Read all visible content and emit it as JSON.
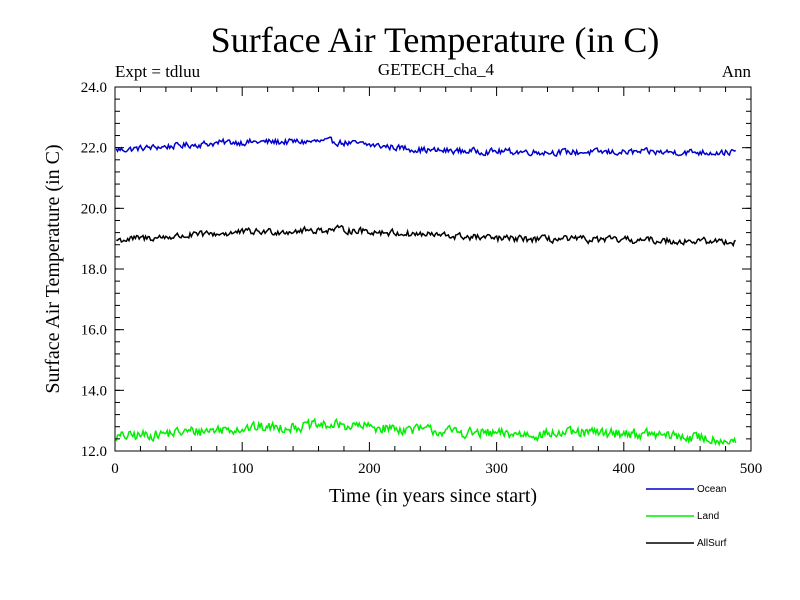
{
  "chart_data": {
    "type": "line",
    "title": "Surface Air Temperature (in C)",
    "subtitle_left": "Expt = tdluu",
    "subtitle_center": "GETECH_cha_4",
    "subtitle_right": "Ann",
    "xlabel": "Time (in years since start)",
    "ylabel": "Surface Air Temperature (in C)",
    "xlim": [
      0,
      500
    ],
    "ylim": [
      12.0,
      24.0
    ],
    "xticks": [
      "0",
      "100",
      "200",
      "300",
      "400",
      "500"
    ],
    "yticks": [
      "12.0",
      "14.0",
      "16.0",
      "18.0",
      "20.0",
      "22.0",
      "24.0"
    ],
    "x_range": [
      1,
      488
    ],
    "grid": false,
    "legend_position": "bottom-right, below plot",
    "series": [
      {
        "name": "Ocean",
        "color": "#0000cc",
        "mean": 21.97,
        "amplitude": 0.12,
        "samples": [
          {
            "x": 0,
            "y": 21.92
          },
          {
            "x": 90,
            "y": 22.18
          },
          {
            "x": 170,
            "y": 22.2
          },
          {
            "x": 250,
            "y": 21.9
          },
          {
            "x": 350,
            "y": 21.85
          },
          {
            "x": 488,
            "y": 21.85
          }
        ]
      },
      {
        "name": "Land",
        "color": "#00ee00",
        "mean": 12.55,
        "amplitude": 0.2,
        "samples": [
          {
            "x": 0,
            "y": 12.45
          },
          {
            "x": 95,
            "y": 12.75
          },
          {
            "x": 175,
            "y": 12.85
          },
          {
            "x": 300,
            "y": 12.55
          },
          {
            "x": 400,
            "y": 12.6
          },
          {
            "x": 488,
            "y": 12.35
          }
        ]
      },
      {
        "name": "AllSurf",
        "color": "#000000",
        "mean": 19.02,
        "amplitude": 0.13,
        "samples": [
          {
            "x": 0,
            "y": 18.95
          },
          {
            "x": 95,
            "y": 19.2
          },
          {
            "x": 175,
            "y": 19.3
          },
          {
            "x": 300,
            "y": 19.0
          },
          {
            "x": 400,
            "y": 18.95
          },
          {
            "x": 488,
            "y": 18.9
          }
        ]
      }
    ]
  }
}
